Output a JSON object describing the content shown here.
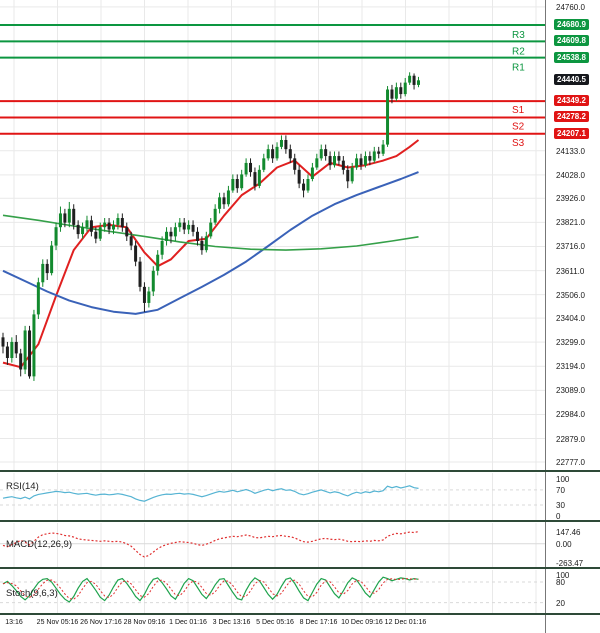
{
  "price_axis": {
    "ticks": [
      "24760.0",
      "24133.0",
      "24028.0",
      "23926.0",
      "23821.0",
      "23716.0",
      "23611.0",
      "23506.0",
      "23404.0",
      "23299.0",
      "23194.0",
      "23089.0",
      "22984.0",
      "22879.0",
      "22777.0"
    ]
  },
  "time_axis": {
    "labels": [
      "13:16",
      "25 Nov 05:16",
      "26 Nov 17:16",
      "28 Nov 09:16",
      "1 Dec 01:16",
      "3 Dec 13:16",
      "5 Dec 05:16",
      "8 Dec 17:16",
      "10 Dec 09:16",
      "12 Dec 01:16"
    ]
  },
  "levels": {
    "resistance": [
      {
        "label": "R3",
        "price": "24680.9"
      },
      {
        "label": "R2",
        "price": "24609.8"
      },
      {
        "label": "R1",
        "price": "24538.8"
      }
    ],
    "support": [
      {
        "label": "S1",
        "price": "24349.2"
      },
      {
        "label": "S2",
        "price": "24278.2"
      },
      {
        "label": "S3",
        "price": "24207.1"
      }
    ],
    "last_price": "24440.5"
  },
  "panes": {
    "rsi": {
      "title": "RSI(14)",
      "ticks": [
        "100",
        "70",
        "30",
        "0"
      ],
      "band_values": [
        70,
        30
      ]
    },
    "macd": {
      "title": "MACD(12,26,9)",
      "ticks": [
        "147.46",
        "0.00",
        "-263.47"
      ],
      "zero_line": 0
    },
    "stoch": {
      "title": "Stoch(9,6,3)",
      "ticks": [
        "100",
        "80",
        "20"
      ],
      "band_values": [
        80,
        20
      ]
    }
  },
  "colors": {
    "grid": "#e9e9e9",
    "band": "#d9d9d9",
    "resistance": "#0c9640",
    "support": "#e01414",
    "last_badge": "#16181d",
    "candle_up": "#128a2e",
    "candle_down": "#1f1f1f",
    "rsi_line": "#56b4d3",
    "macd_line": "#e03030",
    "stoch_k": "#1fa34d",
    "stoch_d": "#e03030"
  },
  "chart_data": [
    {
      "type": "candlestick",
      "title": "Price (4h candles) with support/resistance levels and moving averages",
      "x_labels": [
        "13:16",
        "25 Nov 05:16",
        "26 Nov 17:16",
        "28 Nov 09:16",
        "1 Dec 01:16",
        "3 Dec 13:16",
        "5 Dec 05:16",
        "8 Dec 17:16",
        "10 Dec 09:16",
        "12 Dec 01:16"
      ],
      "ylim": [
        22777,
        24760
      ],
      "levels": {
        "resistance": [
          24680.9,
          24609.8,
          24538.8
        ],
        "support": [
          24349.2,
          24278.2,
          24207.1
        ],
        "last": 24440.5
      },
      "ohlc": [
        [
          23320,
          23340,
          23250,
          23280
        ],
        [
          23280,
          23300,
          23200,
          23230
        ],
        [
          23230,
          23320,
          23210,
          23300
        ],
        [
          23300,
          23330,
          23230,
          23250
        ],
        [
          23250,
          23270,
          23150,
          23180
        ],
        [
          23180,
          23370,
          23160,
          23350
        ],
        [
          23350,
          23370,
          23140,
          23150
        ],
        [
          23150,
          23440,
          23130,
          23420
        ],
        [
          23420,
          23580,
          23400,
          23560
        ],
        [
          23560,
          23660,
          23540,
          23640
        ],
        [
          23640,
          23660,
          23570,
          23600
        ],
        [
          23600,
          23740,
          23590,
          23720
        ],
        [
          23720,
          23820,
          23700,
          23800
        ],
        [
          23800,
          23890,
          23780,
          23860
        ],
        [
          23860,
          23880,
          23800,
          23820
        ],
        [
          23820,
          23910,
          23800,
          23880
        ],
        [
          23880,
          23900,
          23790,
          23810
        ],
        [
          23810,
          23830,
          23750,
          23770
        ],
        [
          23770,
          23820,
          23750,
          23800
        ],
        [
          23800,
          23850,
          23780,
          23830
        ],
        [
          23830,
          23850,
          23760,
          23780
        ],
        [
          23780,
          23800,
          23730,
          23750
        ],
        [
          23750,
          23820,
          23740,
          23800
        ],
        [
          23800,
          23840,
          23780,
          23820
        ],
        [
          23820,
          23840,
          23770,
          23790
        ],
        [
          23790,
          23830,
          23770,
          23810
        ],
        [
          23810,
          23860,
          23790,
          23840
        ],
        [
          23840,
          23860,
          23780,
          23800
        ],
        [
          23800,
          23820,
          23740,
          23760
        ],
        [
          23760,
          23780,
          23700,
          23720
        ],
        [
          23720,
          23740,
          23630,
          23650
        ],
        [
          23650,
          23670,
          23520,
          23540
        ],
        [
          23540,
          23560,
          23430,
          23470
        ],
        [
          23470,
          23540,
          23450,
          23520
        ],
        [
          23520,
          23630,
          23500,
          23610
        ],
        [
          23610,
          23700,
          23590,
          23680
        ],
        [
          23680,
          23760,
          23660,
          23740
        ],
        [
          23740,
          23800,
          23720,
          23780
        ],
        [
          23780,
          23800,
          23730,
          23760
        ],
        [
          23760,
          23820,
          23740,
          23800
        ],
        [
          23800,
          23840,
          23780,
          23820
        ],
        [
          23820,
          23840,
          23770,
          23790
        ],
        [
          23790,
          23830,
          23770,
          23810
        ],
        [
          23810,
          23830,
          23760,
          23780
        ],
        [
          23780,
          23800,
          23720,
          23740
        ],
        [
          23740,
          23760,
          23680,
          23700
        ],
        [
          23700,
          23780,
          23690,
          23760
        ],
        [
          23760,
          23840,
          23750,
          23820
        ],
        [
          23820,
          23900,
          23810,
          23880
        ],
        [
          23880,
          23950,
          23860,
          23930
        ],
        [
          23930,
          23950,
          23880,
          23900
        ],
        [
          23900,
          23980,
          23890,
          23960
        ],
        [
          23960,
          24030,
          23950,
          24010
        ],
        [
          24010,
          24030,
          23950,
          23970
        ],
        [
          23970,
          24050,
          23960,
          24030
        ],
        [
          24030,
          24100,
          24020,
          24080
        ],
        [
          24080,
          24100,
          24020,
          24040
        ],
        [
          24040,
          24060,
          23960,
          23980
        ],
        [
          23980,
          24070,
          23970,
          24050
        ],
        [
          24050,
          24120,
          24040,
          24100
        ],
        [
          24100,
          24160,
          24090,
          24140
        ],
        [
          24140,
          24160,
          24080,
          24100
        ],
        [
          24100,
          24170,
          24090,
          24150
        ],
        [
          24150,
          24200,
          24140,
          24180
        ],
        [
          24180,
          24200,
          24120,
          24140
        ],
        [
          24140,
          24160,
          24080,
          24100
        ],
        [
          24100,
          24120,
          24030,
          24050
        ],
        [
          24050,
          24070,
          23970,
          23990
        ],
        [
          23990,
          24010,
          23930,
          23960
        ],
        [
          23960,
          24030,
          23950,
          24010
        ],
        [
          24010,
          24080,
          24000,
          24060
        ],
        [
          24060,
          24120,
          24050,
          24100
        ],
        [
          24100,
          24160,
          24090,
          24140
        ],
        [
          24140,
          24160,
          24090,
          24110
        ],
        [
          24110,
          24130,
          24050,
          24070
        ],
        [
          24070,
          24130,
          24060,
          24110
        ],
        [
          24110,
          24130,
          24070,
          24090
        ],
        [
          24090,
          24110,
          24030,
          24050
        ],
        [
          24050,
          24070,
          23970,
          24000
        ],
        [
          24000,
          24080,
          23990,
          24060
        ],
        [
          24060,
          24120,
          24050,
          24100
        ],
        [
          24100,
          24120,
          24050,
          24070
        ],
        [
          24070,
          24130,
          24060,
          24110
        ],
        [
          24110,
          24130,
          24070,
          24090
        ],
        [
          24090,
          24150,
          24080,
          24130
        ],
        [
          24130,
          24150,
          24100,
          24120
        ],
        [
          24120,
          24180,
          24110,
          24160
        ],
        [
          24160,
          24415,
          24150,
          24400
        ],
        [
          24400,
          24420,
          24340,
          24360
        ],
        [
          24360,
          24430,
          24350,
          24410
        ],
        [
          24410,
          24430,
          24360,
          24380
        ],
        [
          24380,
          24450,
          24370,
          24430
        ],
        [
          24430,
          24475,
          24420,
          24460
        ],
        [
          24460,
          24470,
          24400,
          24420
        ],
        [
          24420,
          24455,
          24410,
          24440
        ]
      ],
      "overlays": [
        {
          "name": "ma-fast",
          "color": "#e02020",
          "width": 2,
          "points": [
            [
              0,
              23210
            ],
            [
              4,
              23190
            ],
            [
              8,
              23290
            ],
            [
              12,
              23500
            ],
            [
              16,
              23700
            ],
            [
              20,
              23800
            ],
            [
              24,
              23810
            ],
            [
              28,
              23800
            ],
            [
              32,
              23690
            ],
            [
              35,
              23630
            ],
            [
              38,
              23660
            ],
            [
              42,
              23740
            ],
            [
              46,
              23750
            ],
            [
              50,
              23850
            ],
            [
              54,
              23940
            ],
            [
              58,
              23990
            ],
            [
              62,
              24060
            ],
            [
              66,
              24090
            ],
            [
              70,
              24020
            ],
            [
              74,
              24080
            ],
            [
              78,
              24060
            ],
            [
              82,
              24070
            ],
            [
              86,
              24090
            ],
            [
              89,
              24110
            ],
            [
              92,
              24150
            ],
            [
              94,
              24180
            ]
          ]
        },
        {
          "name": "ma-mid",
          "color": "#3a62b8",
          "width": 2,
          "points": [
            [
              0,
              23610
            ],
            [
              5,
              23565
            ],
            [
              10,
              23520
            ],
            [
              15,
              23480
            ],
            [
              20,
              23452
            ],
            [
              25,
              23432
            ],
            [
              30,
              23422
            ],
            [
              35,
              23440
            ],
            [
              40,
              23490
            ],
            [
              45,
              23540
            ],
            [
              50,
              23592
            ],
            [
              55,
              23650
            ],
            [
              60,
              23718
            ],
            [
              65,
              23788
            ],
            [
              70,
              23850
            ],
            [
              75,
              23900
            ],
            [
              80,
              23940
            ],
            [
              85,
              23975
            ],
            [
              90,
              24010
            ],
            [
              94,
              24040
            ]
          ]
        },
        {
          "name": "ma-slow",
          "color": "#35a049",
          "width": 1.6,
          "points": [
            [
              0,
              23852
            ],
            [
              8,
              23830
            ],
            [
              16,
              23805
            ],
            [
              24,
              23782
            ],
            [
              32,
              23760
            ],
            [
              40,
              23736
            ],
            [
              48,
              23716
            ],
            [
              56,
              23704
            ],
            [
              64,
              23700
            ],
            [
              72,
              23706
            ],
            [
              80,
              23718
            ],
            [
              88,
              23740
            ],
            [
              94,
              23758
            ]
          ]
        }
      ]
    },
    {
      "type": "line",
      "name": "RSI(14)",
      "ylim": [
        0,
        100
      ],
      "values": [
        48,
        50,
        52,
        49,
        47,
        51,
        46,
        54,
        58,
        60,
        62,
        64,
        66,
        65,
        63,
        64,
        61,
        59,
        60,
        61,
        58,
        56,
        58,
        59,
        57,
        58,
        60,
        58,
        55,
        52,
        46,
        42,
        40,
        45,
        50,
        54,
        57,
        59,
        58,
        60,
        61,
        59,
        60,
        58,
        55,
        52,
        55,
        59,
        63,
        66,
        64,
        66,
        69,
        65,
        68,
        71,
        67,
        61,
        65,
        69,
        72,
        68,
        71,
        73,
        69,
        70,
        66,
        60,
        57,
        60,
        64,
        67,
        70,
        66,
        62,
        65,
        63,
        58,
        54,
        60,
        64,
        61,
        65,
        63,
        67,
        65,
        68,
        80,
        76,
        79,
        75,
        78,
        81,
        76,
        74
      ]
    },
    {
      "type": "line",
      "name": "MACD(12,26,9)",
      "ylim": [
        -263.47,
        147.46
      ],
      "values": [
        -20,
        -35,
        -10,
        15,
        40,
        20,
        -15,
        30,
        80,
        110,
        120,
        130,
        125,
        115,
        100,
        95,
        80,
        60,
        50,
        45,
        40,
        35,
        30,
        35,
        30,
        25,
        30,
        20,
        0,
        -30,
        -80,
        -130,
        -160,
        -140,
        -100,
        -60,
        -30,
        -10,
        5,
        15,
        25,
        20,
        15,
        5,
        -10,
        -20,
        -5,
        15,
        40,
        60,
        70,
        80,
        90,
        85,
        95,
        105,
        95,
        75,
        70,
        80,
        90,
        85,
        95,
        100,
        90,
        85,
        70,
        45,
        25,
        20,
        30,
        45,
        60,
        65,
        55,
        50,
        55,
        45,
        30,
        25,
        30,
        25,
        35,
        30,
        40,
        35,
        45,
        90,
        110,
        125,
        120,
        130,
        140,
        135,
        147
      ]
    },
    {
      "type": "line",
      "name": "Stoch(9,6,3) %K",
      "ylim": [
        0,
        100
      ],
      "values": [
        75,
        82,
        70,
        55,
        38,
        28,
        40,
        60,
        78,
        88,
        90,
        80,
        62,
        44,
        30,
        22,
        38,
        62,
        82,
        90,
        74,
        56,
        36,
        26,
        42,
        66,
        86,
        90,
        76,
        58,
        38,
        26,
        44,
        70,
        88,
        92,
        78,
        60,
        40,
        30,
        52,
        76,
        90,
        84,
        64,
        44,
        32,
        50,
        72,
        88,
        90,
        70,
        50,
        32,
        28,
        56,
        78,
        92,
        84,
        64,
        44,
        30,
        44,
        68,
        88,
        92,
        76,
        54,
        34,
        26,
        50,
        74,
        90,
        86,
        66,
        46,
        34,
        54,
        78,
        92,
        86,
        68,
        48,
        36,
        58,
        80,
        94,
        90,
        84,
        88,
        92,
        90,
        86,
        90,
        88
      ]
    }
  ]
}
